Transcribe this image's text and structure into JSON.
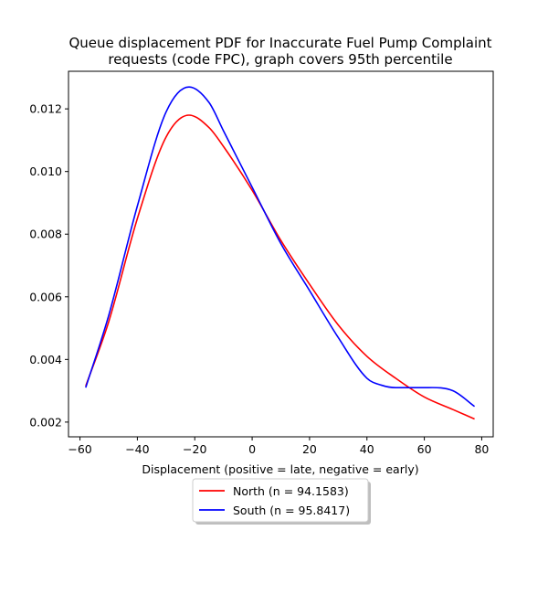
{
  "chart_data": {
    "type": "line",
    "title_lines": [
      "Queue displacement PDF for Inaccurate Fuel Pump Complaint",
      "requests (code FPC), graph covers 95th percentile"
    ],
    "xlabel": "Displacement (positive = late, negative = early)",
    "ylabel": "",
    "xlim": [
      -64,
      84
    ],
    "ylim": [
      0.00153,
      0.0132
    ],
    "x_ticks": [
      -60,
      -40,
      -20,
      0,
      20,
      40,
      60,
      80
    ],
    "x_tick_labels": [
      "−60",
      "−40",
      "−20",
      "0",
      "20",
      "40",
      "60",
      "80"
    ],
    "y_ticks": [
      0.002,
      0.004,
      0.006,
      0.008,
      0.01,
      0.012
    ],
    "y_tick_labels": [
      "0.002",
      "0.004",
      "0.006",
      "0.008",
      "0.010",
      "0.012"
    ],
    "grid": false,
    "legend_position": "below-center",
    "series": [
      {
        "name": "North (n = 94.1583)",
        "color": "#ff0000",
        "x": [
          -58,
          -50,
          -40,
          -30,
          -22,
          -15,
          -10,
          0,
          10,
          20,
          30,
          40,
          50,
          60,
          70,
          77.5
        ],
        "y": [
          0.00315,
          0.0052,
          0.0085,
          0.0111,
          0.0118,
          0.0114,
          0.0108,
          0.0094,
          0.0078,
          0.0064,
          0.0051,
          0.0041,
          0.0034,
          0.0028,
          0.0024,
          0.0021
        ]
      },
      {
        "name": "South (n = 95.8417)",
        "color": "#0000ff",
        "x": [
          -58,
          -50,
          -40,
          -30,
          -22,
          -15,
          -10,
          0,
          10,
          20,
          30,
          40,
          45,
          50,
          60,
          70,
          77.5
        ],
        "y": [
          0.0031,
          0.0054,
          0.0089,
          0.0119,
          0.0127,
          0.0122,
          0.0113,
          0.0095,
          0.0077,
          0.0062,
          0.0047,
          0.0034,
          0.00318,
          0.0031,
          0.0031,
          0.003,
          0.0025
        ]
      }
    ]
  }
}
